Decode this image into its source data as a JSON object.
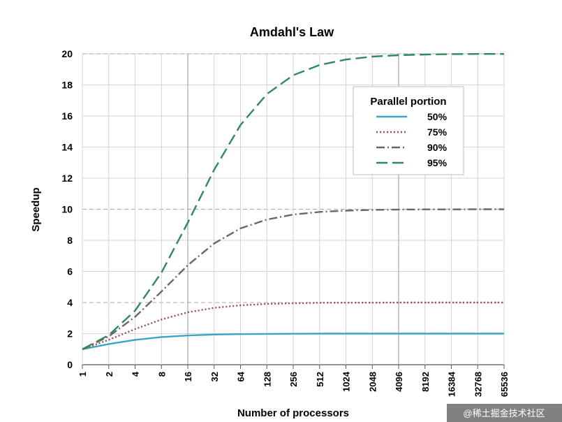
{
  "chart_data": {
    "type": "line",
    "title": "Amdahl's Law",
    "xlabel": "Number of processors",
    "ylabel": "Speedup",
    "x_scale": "log2",
    "categories": [
      "1",
      "2",
      "4",
      "8",
      "16",
      "32",
      "64",
      "128",
      "256",
      "512",
      "1024",
      "2048",
      "4096",
      "8192",
      "16384",
      "32768",
      "65536"
    ],
    "ylim": [
      0,
      20
    ],
    "yticks": [
      "0",
      "2",
      "4",
      "6",
      "8",
      "10",
      "12",
      "14",
      "16",
      "18",
      "20"
    ],
    "grid": true,
    "legend": {
      "title": "Parallel portion",
      "placement": "top-right"
    },
    "series": [
      {
        "name": "50%",
        "color": "#3aa6c4",
        "dash": "solid",
        "values": [
          1.0,
          1.33,
          1.6,
          1.78,
          1.88,
          1.94,
          1.97,
          1.98,
          1.99,
          2.0,
          2.0,
          2.0,
          2.0,
          2.0,
          2.0,
          2.0,
          2.0
        ]
      },
      {
        "name": "75%",
        "color": "#9a4a55",
        "dash": "dotted",
        "values": [
          1.0,
          1.6,
          2.29,
          2.91,
          3.37,
          3.66,
          3.82,
          3.91,
          3.95,
          3.98,
          3.99,
          3.99,
          4.0,
          4.0,
          4.0,
          4.0,
          4.0
        ]
      },
      {
        "name": "90%",
        "color": "#6e6470",
        "dash": "dashdot",
        "values": [
          1.0,
          1.82,
          3.08,
          4.71,
          6.4,
          7.8,
          8.77,
          9.34,
          9.66,
          9.83,
          9.91,
          9.96,
          9.98,
          9.99,
          9.99,
          10.0,
          10.0
        ]
      },
      {
        "name": "95%",
        "color": "#2e8a5a",
        "dash": "longdash",
        "values": [
          1.0,
          1.9,
          3.48,
          5.93,
          9.14,
          12.55,
          15.42,
          17.41,
          18.62,
          19.28,
          19.63,
          19.82,
          19.91,
          19.95,
          19.98,
          19.99,
          19.99
        ]
      }
    ]
  },
  "watermark": "@稀土掘金技术社区"
}
